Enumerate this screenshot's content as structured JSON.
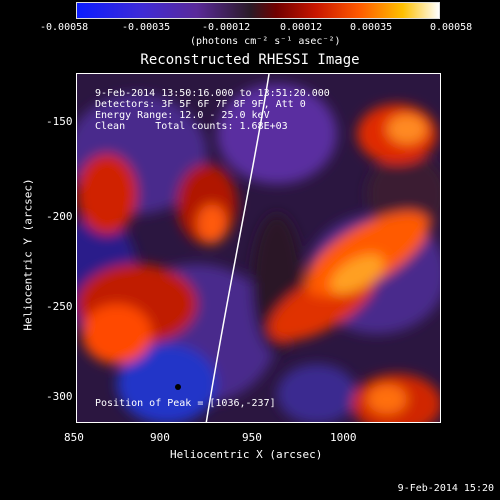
{
  "colorbar": {
    "ticks": [
      "-0.00058",
      "-0.00035",
      "-0.00012",
      "0.00012",
      "0.00035",
      "0.00058"
    ],
    "unit_label": "(photons cm⁻² s⁻¹ asec⁻²)"
  },
  "title": "Reconstructed RHESSI Image",
  "info": {
    "line1": "9-Feb-2014 13:50:16.000 to 13:51:20.000",
    "line2": "Detectors: 3F 5F 6F 7F 8F 9F, Att 0",
    "line3": "Energy Range: 12.0 - 25.0 keV",
    "line4": "Clean     Total counts: 1.68E+03"
  },
  "peak_label": "Position of Peak = [1036,-237]",
  "axes": {
    "xlabel": "Heliocentric X (arcsec)",
    "ylabel": "Heliocentric Y (arcsec)",
    "xticks": [
      "850",
      "900",
      "950",
      "1000"
    ],
    "yticks": [
      "-150",
      "-200",
      "-250",
      "-300"
    ]
  },
  "footer": "9-Feb-2014 15:20"
}
